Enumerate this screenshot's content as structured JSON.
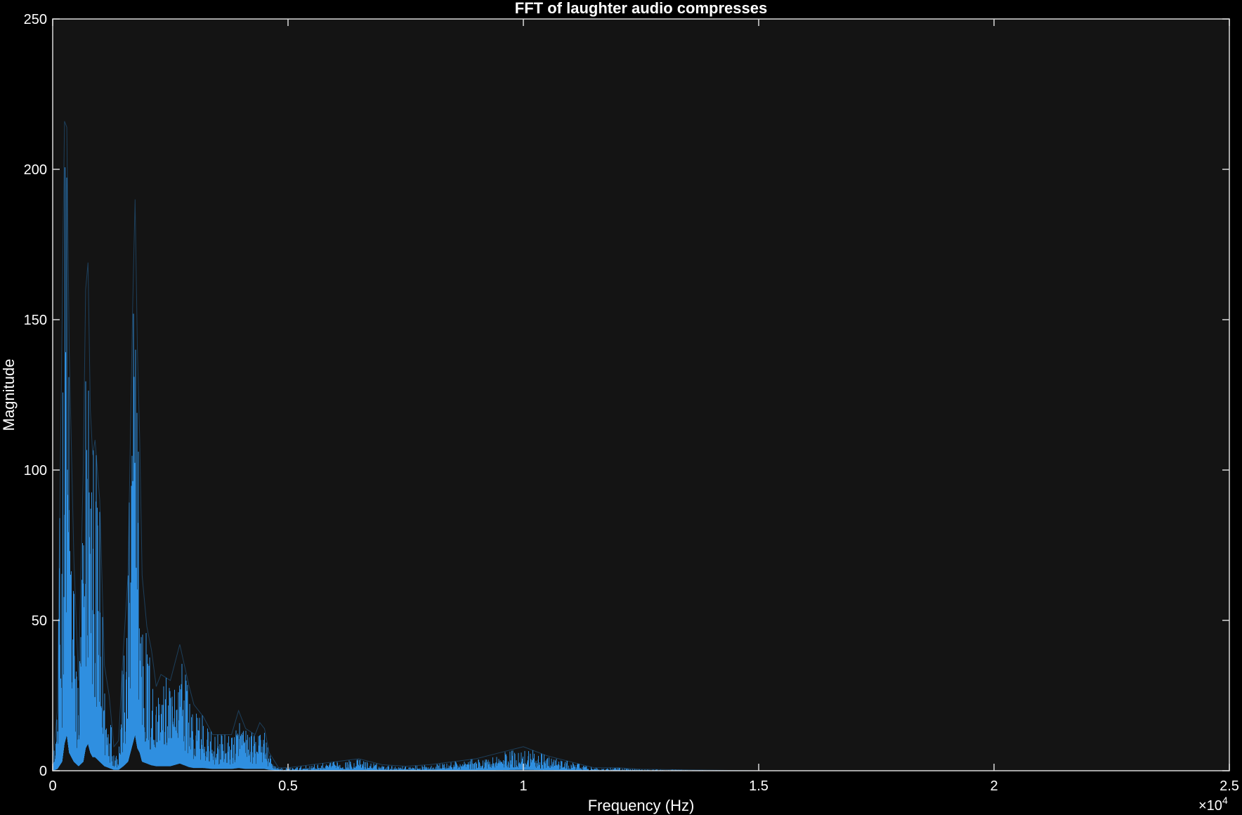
{
  "chart_data": {
    "type": "line",
    "title": "FFT of laughter audio compresses",
    "xlabel": "Frequency (Hz)",
    "ylabel": "Magnitude",
    "xlim": [
      0,
      25000
    ],
    "ylim": [
      0,
      250
    ],
    "x_ticks": [
      0,
      5000,
      10000,
      15000,
      20000,
      25000
    ],
    "x_tick_labels": [
      "0",
      "0.5",
      "1",
      "1.5",
      "2",
      "2.5"
    ],
    "x_exponent_label": "×10",
    "x_exponent_power": "4",
    "y_ticks": [
      0,
      50,
      100,
      150,
      200,
      250
    ],
    "y_tick_labels": [
      "0",
      "50",
      "100",
      "150",
      "200",
      "250"
    ],
    "grid": false,
    "colors": {
      "figure_bg": "#000000",
      "axes_bg": "#141414",
      "axis": "#d9d9d9",
      "text": "#ffffff",
      "series": "#2f8fe0"
    },
    "series": [
      {
        "x": [
          0,
          100,
          200,
          250,
          300,
          350,
          450,
          550,
          650,
          700,
          750,
          800,
          850,
          900,
          1000,
          1100,
          1200,
          1300,
          1400,
          1500,
          1600,
          1700,
          1750,
          1800,
          1850,
          1900,
          2000,
          2100,
          2200,
          2300,
          2500,
          2700,
          2800,
          2900,
          3000,
          3200,
          3400,
          3600,
          3800,
          3950,
          4100,
          4300,
          4400,
          4500,
          4600,
          4800,
          5000,
          5500,
          6000,
          6500,
          7000,
          7500,
          8000,
          8500,
          9000,
          9500,
          10000,
          10500,
          11000,
          11500,
          12000,
          12500,
          15000,
          20000,
          25000
        ],
        "y_envelope": [
          3,
          20,
          150,
          216,
          214,
          140,
          70,
          30,
          100,
          160,
          169,
          120,
          105,
          110,
          90,
          35,
          25,
          8,
          10,
          40,
          65,
          155,
          190,
          140,
          110,
          65,
          48,
          40,
          28,
          32,
          30,
          42,
          35,
          28,
          22,
          18,
          12,
          12,
          12,
          20,
          14,
          12,
          16,
          14,
          6,
          1,
          1,
          2,
          3,
          4,
          2,
          1.5,
          2,
          3,
          4,
          6,
          8,
          5,
          3,
          1,
          1,
          0.5,
          0,
          0,
          0
        ],
        "y_floor": [
          0,
          2,
          10,
          30,
          40,
          20,
          10,
          5,
          10,
          25,
          30,
          20,
          15,
          15,
          10,
          5,
          3,
          1,
          1,
          5,
          10,
          30,
          40,
          25,
          20,
          10,
          8,
          6,
          5,
          5,
          5,
          8,
          6,
          4,
          3,
          3,
          2,
          2,
          2,
          3,
          2,
          2,
          2,
          2,
          1,
          0,
          0,
          0.2,
          0.4,
          0.5,
          0.3,
          0.2,
          0.3,
          0.4,
          0.5,
          0.7,
          1,
          0.6,
          0.3,
          0,
          0,
          0,
          0,
          0,
          0
        ]
      }
    ]
  }
}
